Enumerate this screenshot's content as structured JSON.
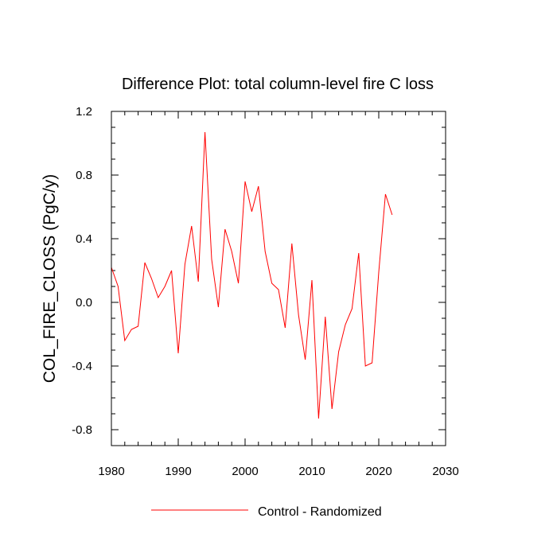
{
  "chart_data": {
    "type": "line",
    "title": "Difference Plot: total column-level fire C loss",
    "xlabel": "",
    "ylabel": "COL_FIRE_CLOSS  (PgC/y)",
    "xlim": [
      1980,
      2030
    ],
    "ylim": [
      -0.9,
      1.2
    ],
    "xticks": [
      1980,
      1990,
      2000,
      2010,
      2020,
      2030
    ],
    "xtick_labels": [
      "1980",
      "1990",
      "2000",
      "2010",
      "2020",
      "2030"
    ],
    "yticks": [
      -0.8,
      -0.4,
      0.0,
      0.4,
      0.8,
      1.2
    ],
    "ytick_labels": [
      "-0.8",
      "-0.4",
      "0.0",
      "0.4",
      "0.8",
      "1.2"
    ],
    "grid": false,
    "legend_position": "bottom-center",
    "series": [
      {
        "name": "Control - Randomized",
        "color": "#ff0000",
        "x": [
          1980,
          1981,
          1982,
          1983,
          1984,
          1985,
          1986,
          1987,
          1988,
          1989,
          1990,
          1991,
          1992,
          1993,
          1994,
          1995,
          1996,
          1997,
          1998,
          1999,
          2000,
          2001,
          2002,
          2003,
          2004,
          2005,
          2006,
          2007,
          2008,
          2009,
          2010,
          2011,
          2012,
          2013,
          2014,
          2015,
          2016,
          2017,
          2018,
          2019,
          2020,
          2021,
          2022
        ],
        "y": [
          0.22,
          0.1,
          -0.24,
          -0.17,
          -0.15,
          0.25,
          0.15,
          0.03,
          0.1,
          0.2,
          -0.32,
          0.24,
          0.48,
          0.13,
          1.07,
          0.27,
          -0.03,
          0.46,
          0.32,
          0.12,
          0.76,
          0.57,
          0.73,
          0.32,
          0.12,
          0.08,
          -0.16,
          0.37,
          -0.08,
          -0.36,
          0.14,
          -0.73,
          -0.09,
          -0.67,
          -0.31,
          -0.14,
          -0.04,
          0.31,
          -0.4,
          -0.38,
          0.19,
          0.68,
          0.55
        ]
      }
    ]
  }
}
